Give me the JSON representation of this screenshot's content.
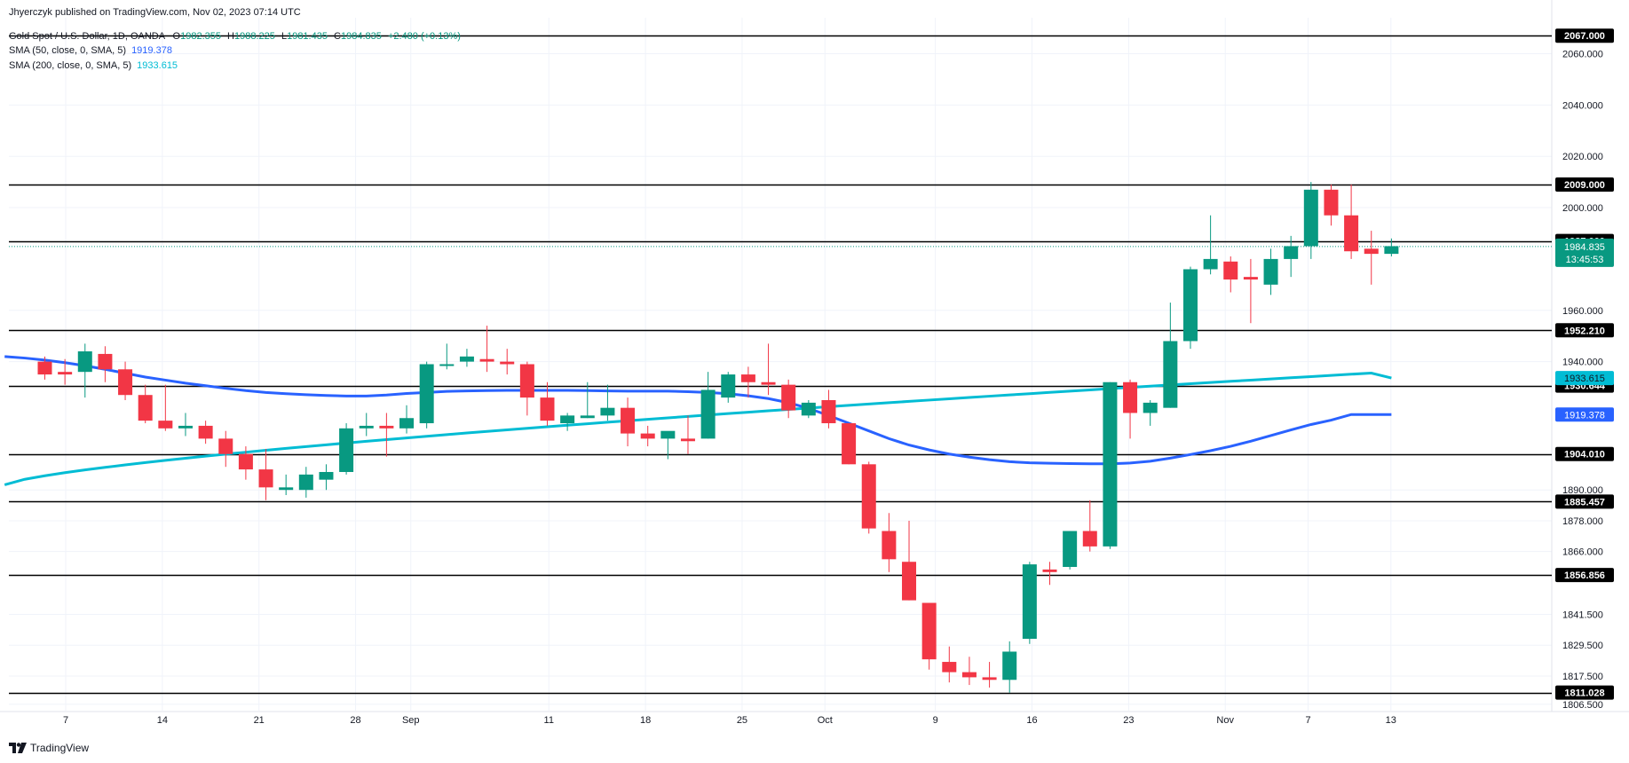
{
  "header": {
    "published_by": "Jhyerczyk published on TradingView.com, Nov 02, 2023 07:14 UTC",
    "symbol": "Gold Spot / U.S. Dollar, 1D, OANDA",
    "open_label": "O",
    "open": "1982.355",
    "high_label": "H",
    "high": "1988.225",
    "low_label": "L",
    "low": "1981.435",
    "close_label": "C",
    "close": "1984.835",
    "change": "+2.480 (+0.13%)",
    "sma50_label": "SMA (50, close, 0, SMA, 5)",
    "sma50_value": "1919.378",
    "sma200_label": "SMA (200, close, 0, SMA, 5)",
    "sma200_value": "1933.615"
  },
  "footer": {
    "brand": "TradingView",
    "logo_icon": "tradingview-logo-icon"
  },
  "colors": {
    "up": "#089981",
    "down": "#f23645",
    "sma50": "#2962ff",
    "sma200": "#00bcd4",
    "level": "#000000",
    "last": "#089981"
  },
  "chart_data": {
    "type": "candlestick",
    "title": "Gold Spot / U.S. Dollar, 1D, OANDA",
    "x_tick_labels": [
      "7",
      "14",
      "21",
      "28",
      "Sep",
      "11",
      "18",
      "25",
      "Oct",
      "9",
      "16",
      "23",
      "Nov",
      "7",
      "13"
    ],
    "y_tick_labels": [
      "2060.000",
      "2040.000",
      "2020.000",
      "2000.000",
      "1960.000",
      "1940.000",
      "1890.000",
      "1878.000",
      "1866.000",
      "1841.500",
      "1829.500",
      "1817.500",
      "1806.500"
    ],
    "y_range": [
      1804,
      2074
    ],
    "horizontal_levels": [
      "2067.000",
      "2009.000",
      "1987.000",
      "1952.210",
      "1930.644",
      "1904.010",
      "1885.457",
      "1856.856",
      "1811.028"
    ],
    "last_price": "1984.835",
    "countdown": "13:45:53",
    "sma200_label": "1933.615",
    "sma50_label": "1919.378",
    "candles": [
      {
        "o": 1940,
        "h": 1942,
        "l": 1933,
        "c": 1935
      },
      {
        "o": 1936,
        "h": 1941,
        "l": 1931,
        "c": 1935
      },
      {
        "o": 1936,
        "h": 1947,
        "l": 1926,
        "c": 1944
      },
      {
        "o": 1943,
        "h": 1946,
        "l": 1932,
        "c": 1937
      },
      {
        "o": 1937,
        "h": 1940,
        "l": 1925,
        "c": 1927
      },
      {
        "o": 1927,
        "h": 1931,
        "l": 1916,
        "c": 1917
      },
      {
        "o": 1917,
        "h": 1931,
        "l": 1913,
        "c": 1914
      },
      {
        "o": 1914,
        "h": 1920,
        "l": 1911,
        "c": 1915
      },
      {
        "o": 1915,
        "h": 1917,
        "l": 1908,
        "c": 1910
      },
      {
        "o": 1910,
        "h": 1913,
        "l": 1899,
        "c": 1904
      },
      {
        "o": 1904,
        "h": 1907,
        "l": 1894,
        "c": 1898
      },
      {
        "o": 1898,
        "h": 1906,
        "l": 1886,
        "c": 1891
      },
      {
        "o": 1890,
        "h": 1896,
        "l": 1888,
        "c": 1891
      },
      {
        "o": 1890,
        "h": 1899,
        "l": 1887,
        "c": 1896
      },
      {
        "o": 1894,
        "h": 1900,
        "l": 1890,
        "c": 1897
      },
      {
        "o": 1897,
        "h": 1916,
        "l": 1896,
        "c": 1914
      },
      {
        "o": 1914,
        "h": 1920,
        "l": 1911,
        "c": 1915
      },
      {
        "o": 1915,
        "h": 1920,
        "l": 1903,
        "c": 1914
      },
      {
        "o": 1914,
        "h": 1923,
        "l": 1912,
        "c": 1918
      },
      {
        "o": 1916,
        "h": 1940,
        "l": 1914,
        "c": 1939
      },
      {
        "o": 1939,
        "h": 1947,
        "l": 1937,
        "c": 1939
      },
      {
        "o": 1940,
        "h": 1945,
        "l": 1938,
        "c": 1942
      },
      {
        "o": 1941,
        "h": 1954,
        "l": 1936,
        "c": 1940
      },
      {
        "o": 1940,
        "h": 1945,
        "l": 1935,
        "c": 1939
      },
      {
        "o": 1939,
        "h": 1940,
        "l": 1919,
        "c": 1926
      },
      {
        "o": 1926,
        "h": 1932,
        "l": 1915,
        "c": 1917
      },
      {
        "o": 1916,
        "h": 1920,
        "l": 1913,
        "c": 1919
      },
      {
        "o": 1918,
        "h": 1932,
        "l": 1918,
        "c": 1919
      },
      {
        "o": 1919,
        "h": 1931,
        "l": 1917,
        "c": 1922
      },
      {
        "o": 1922,
        "h": 1926,
        "l": 1907,
        "c": 1912
      },
      {
        "o": 1912,
        "h": 1915,
        "l": 1907,
        "c": 1910
      },
      {
        "o": 1910,
        "h": 1912,
        "l": 1902,
        "c": 1913
      },
      {
        "o": 1910,
        "h": 1919,
        "l": 1904,
        "c": 1909
      },
      {
        "o": 1910,
        "h": 1936,
        "l": 1910,
        "c": 1929
      },
      {
        "o": 1926,
        "h": 1936,
        "l": 1924,
        "c": 1935
      },
      {
        "o": 1935,
        "h": 1938,
        "l": 1926,
        "c": 1932
      },
      {
        "o": 1932,
        "h": 1947,
        "l": 1927,
        "c": 1931
      },
      {
        "o": 1931,
        "h": 1933,
        "l": 1918,
        "c": 1921
      },
      {
        "o": 1919,
        "h": 1925,
        "l": 1918,
        "c": 1924
      },
      {
        "o": 1925,
        "h": 1929,
        "l": 1914,
        "c": 1916
      },
      {
        "o": 1916,
        "h": 1916,
        "l": 1900,
        "c": 1900
      },
      {
        "o": 1900,
        "h": 1901,
        "l": 1873,
        "c": 1875
      },
      {
        "o": 1874,
        "h": 1881,
        "l": 1858,
        "c": 1863
      },
      {
        "o": 1862,
        "h": 1878,
        "l": 1847,
        "c": 1847
      },
      {
        "o": 1846,
        "h": 1846,
        "l": 1820,
        "c": 1824
      },
      {
        "o": 1823,
        "h": 1829,
        "l": 1815,
        "c": 1819
      },
      {
        "o": 1819,
        "h": 1825,
        "l": 1814,
        "c": 1817
      },
      {
        "o": 1817,
        "h": 1823,
        "l": 1813,
        "c": 1816
      },
      {
        "o": 1816,
        "h": 1831,
        "l": 1811,
        "c": 1827
      },
      {
        "o": 1832,
        "h": 1862,
        "l": 1830,
        "c": 1861
      },
      {
        "o": 1859,
        "h": 1862,
        "l": 1853,
        "c": 1858
      },
      {
        "o": 1860,
        "h": 1874,
        "l": 1859,
        "c": 1874
      },
      {
        "o": 1874,
        "h": 1886,
        "l": 1866,
        "c": 1868
      },
      {
        "o": 1868,
        "h": 1932,
        "l": 1867,
        "c": 1932
      },
      {
        "o": 1932,
        "h": 1933,
        "l": 1910,
        "c": 1920
      },
      {
        "o": 1920,
        "h": 1925,
        "l": 1915,
        "c": 1924
      },
      {
        "o": 1922,
        "h": 1963,
        "l": 1922,
        "c": 1948
      },
      {
        "o": 1948,
        "h": 1977,
        "l": 1945,
        "c": 1976
      },
      {
        "o": 1976,
        "h": 1997,
        "l": 1974,
        "c": 1980
      },
      {
        "o": 1979,
        "h": 1981,
        "l": 1967,
        "c": 1972
      },
      {
        "o": 1973,
        "h": 1980,
        "l": 1955,
        "c": 1972
      },
      {
        "o": 1970,
        "h": 1984,
        "l": 1966,
        "c": 1980
      },
      {
        "o": 1980,
        "h": 1989,
        "l": 1973,
        "c": 1985
      },
      {
        "o": 1985,
        "h": 2010,
        "l": 1980,
        "c": 2007
      },
      {
        "o": 2007,
        "h": 2009,
        "l": 1993,
        "c": 1997
      },
      {
        "o": 1997,
        "h": 2009,
        "l": 1980,
        "c": 1983
      },
      {
        "o": 1984,
        "h": 1991,
        "l": 1970,
        "c": 1982
      },
      {
        "o": 1982,
        "h": 1988,
        "l": 1981,
        "c": 1985
      }
    ],
    "sma50": [
      1942,
      1941.4,
      1940.6,
      1939.6,
      1938.4,
      1937,
      1935.5,
      1934,
      1932.8,
      1931.6,
      1930.6,
      1929.6,
      1928.7,
      1928,
      1927.5,
      1927.1,
      1926.8,
      1926.6,
      1926.6,
      1927,
      1927.6,
      1928,
      1928.4,
      1928.6,
      1928.7,
      1928.8,
      1928.8,
      1928.8,
      1928.8,
      1928.7,
      1928.6,
      1928.5,
      1928.5,
      1928.5,
      1928.3,
      1928,
      1927.5,
      1926.7,
      1925.6,
      1924,
      1921.8,
      1919,
      1916,
      1913,
      1910,
      1907.5,
      1905.6,
      1904,
      1902.8,
      1901.8,
      1901,
      1900.6,
      1900.4,
      1900.3,
      1900.2,
      1900.2,
      1900.5,
      1901.2,
      1902.4,
      1903.8,
      1905.3,
      1907,
      1909,
      1911.2,
      1913.4,
      1915.5,
      1917.2,
      1919.4
    ]
  }
}
